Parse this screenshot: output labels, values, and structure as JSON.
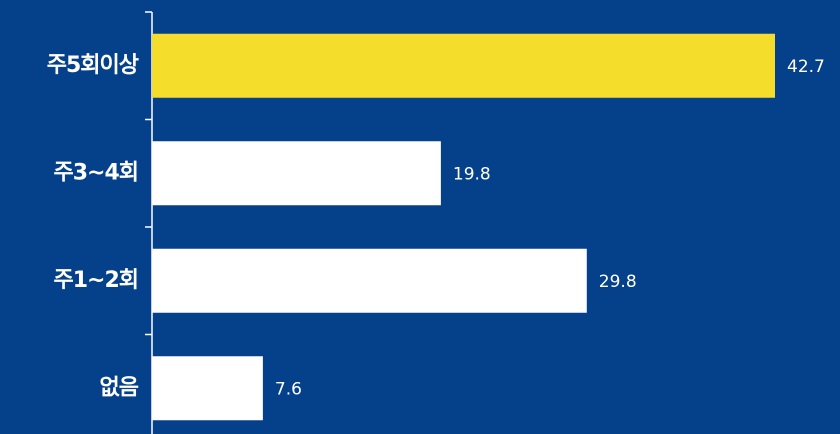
{
  "chart_data": {
    "type": "bar",
    "orientation": "horizontal",
    "categories": [
      "주5회이상",
      "주3~4회",
      "주1~2회",
      "없음"
    ],
    "values": [
      42.7,
      19.8,
      29.8,
      7.6
    ],
    "colors": [
      "#f5dd2b",
      "#ffffff",
      "#ffffff",
      "#ffffff"
    ]
  }
}
